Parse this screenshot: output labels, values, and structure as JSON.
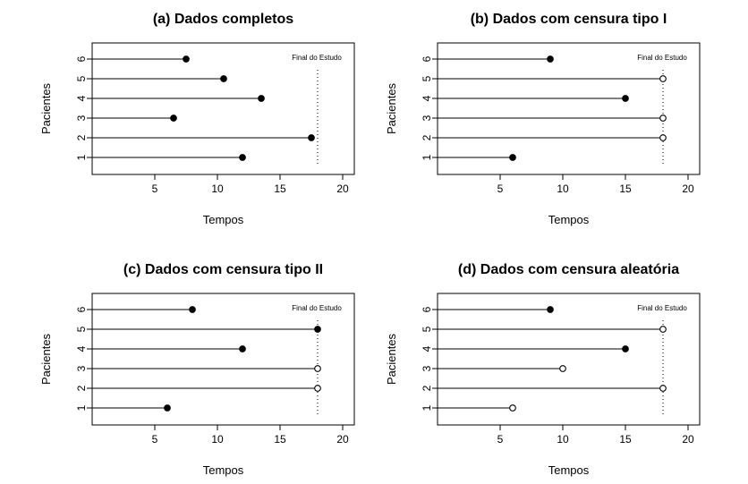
{
  "chart_data": [
    {
      "type": "scatter",
      "title": "(a) Dados completos",
      "xlabel": "Tempos",
      "ylabel": "Pacientes",
      "xlim": [
        0,
        20
      ],
      "ylim": [
        0.5,
        6.5
      ],
      "x_ticks": [
        "5",
        "10",
        "15",
        "20"
      ],
      "y_ticks": [
        "1",
        "2",
        "3",
        "4",
        "5",
        "6"
      ],
      "annotation": "Final do Estudo",
      "study_end": 18,
      "patients": [
        {
          "patient": 1,
          "time": 12,
          "censored": false
        },
        {
          "patient": 2,
          "time": 17.5,
          "censored": false
        },
        {
          "patient": 3,
          "time": 6.5,
          "censored": false
        },
        {
          "patient": 4,
          "time": 13.5,
          "censored": false
        },
        {
          "patient": 5,
          "time": 10.5,
          "censored": false
        },
        {
          "patient": 6,
          "time": 7.5,
          "censored": false
        }
      ]
    },
    {
      "type": "scatter",
      "title": "(b) Dados com censura tipo I",
      "xlabel": "Tempos",
      "ylabel": "Pacientes",
      "xlim": [
        0,
        20
      ],
      "ylim": [
        0.5,
        6.5
      ],
      "x_ticks": [
        "5",
        "10",
        "15",
        "20"
      ],
      "y_ticks": [
        "1",
        "2",
        "3",
        "4",
        "5",
        "6"
      ],
      "annotation": "Final do Estudo",
      "study_end": 18,
      "patients": [
        {
          "patient": 1,
          "time": 6,
          "censored": false
        },
        {
          "patient": 2,
          "time": 18,
          "censored": true
        },
        {
          "patient": 3,
          "time": 18,
          "censored": true
        },
        {
          "patient": 4,
          "time": 15,
          "censored": false
        },
        {
          "patient": 5,
          "time": 18,
          "censored": true
        },
        {
          "patient": 6,
          "time": 9,
          "censored": false
        }
      ]
    },
    {
      "type": "scatter",
      "title": "(c) Dados com censura tipo II",
      "xlabel": "Tempos",
      "ylabel": "Pacientes",
      "xlim": [
        0,
        20
      ],
      "ylim": [
        0.5,
        6.5
      ],
      "x_ticks": [
        "5",
        "10",
        "15",
        "20"
      ],
      "y_ticks": [
        "1",
        "2",
        "3",
        "4",
        "5",
        "6"
      ],
      "annotation": "Final do Estudo",
      "study_end": 18,
      "patients": [
        {
          "patient": 1,
          "time": 6,
          "censored": false
        },
        {
          "patient": 2,
          "time": 18,
          "censored": true
        },
        {
          "patient": 3,
          "time": 18,
          "censored": true
        },
        {
          "patient": 4,
          "time": 12,
          "censored": false
        },
        {
          "patient": 5,
          "time": 18,
          "censored": false
        },
        {
          "patient": 6,
          "time": 8,
          "censored": false
        }
      ]
    },
    {
      "type": "scatter",
      "title": "(d) Dados com censura aleatória",
      "xlabel": "Tempos",
      "ylabel": "Pacientes",
      "xlim": [
        0,
        20
      ],
      "ylim": [
        0.5,
        6.5
      ],
      "x_ticks": [
        "5",
        "10",
        "15",
        "20"
      ],
      "y_ticks": [
        "1",
        "2",
        "3",
        "4",
        "5",
        "6"
      ],
      "annotation": "Final do Estudo",
      "study_end": 18,
      "patients": [
        {
          "patient": 1,
          "time": 6,
          "censored": true
        },
        {
          "patient": 2,
          "time": 18,
          "censored": true
        },
        {
          "patient": 3,
          "time": 10,
          "censored": true
        },
        {
          "patient": 4,
          "time": 15,
          "censored": false
        },
        {
          "patient": 5,
          "time": 18,
          "censored": true
        },
        {
          "patient": 6,
          "time": 9,
          "censored": false
        }
      ]
    }
  ]
}
